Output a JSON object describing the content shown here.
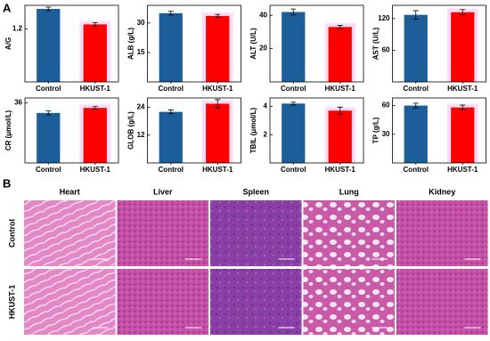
{
  "panel_labels": [
    "A",
    "B"
  ],
  "chart_data": [
    {
      "type": "bar",
      "ylabel": "A/G",
      "categories": [
        "Control",
        "HKUST-1"
      ],
      "values": [
        1.65,
        1.3
      ],
      "errors": [
        0.04,
        0.04
      ],
      "colors": [
        "#1b5e9a",
        "#ff0000"
      ],
      "ylim": [
        0,
        1.73
      ],
      "yticks": [
        1.2
      ]
    },
    {
      "type": "bar",
      "ylabel": "ALB (g/L)",
      "categories": [
        "Control",
        "HKUST-1"
      ],
      "values": [
        35,
        33.6
      ],
      "errors": [
        1,
        0.8
      ],
      "colors": [
        "#1b5e9a",
        "#ff0000"
      ],
      "ylim": [
        0,
        39
      ],
      "yticks": [
        15,
        30
      ]
    },
    {
      "type": "bar",
      "ylabel": "ALT (U/L)",
      "categories": [
        "Control",
        "HKUST-1"
      ],
      "values": [
        42,
        33
      ],
      "errors": [
        1.8,
        1
      ],
      "colors": [
        "#1b5e9a",
        "#ff0000"
      ],
      "ylim": [
        0,
        46
      ],
      "yticks": [
        20,
        40
      ]
    },
    {
      "type": "bar",
      "ylabel": "AST (U/L)",
      "categories": [
        "Control",
        "HKUST-1"
      ],
      "values": [
        127,
        132
      ],
      "errors": [
        8,
        5
      ],
      "colors": [
        "#1b5e9a",
        "#ff0000"
      ],
      "ylim": [
        0,
        145
      ],
      "yticks": [
        60,
        120
      ]
    },
    {
      "type": "bar",
      "ylabel": "CR (μmol/L)",
      "categories": [
        "Control",
        "HKUST-1"
      ],
      "values": [
        30,
        33
      ],
      "errors": [
        1.2,
        0.8
      ],
      "colors": [
        "#1b5e9a",
        "#ff0000"
      ],
      "ylim": [
        0,
        39
      ],
      "yticks": [
        36
      ]
    },
    {
      "type": "bar",
      "ylabel": "GLOB (g/L)",
      "categories": [
        "Control",
        "HKUST-1"
      ],
      "values": [
        22,
        25.5
      ],
      "errors": [
        0.8,
        1.8
      ],
      "colors": [
        "#1b5e9a",
        "#ff0000"
      ],
      "ylim": [
        0,
        28
      ],
      "yticks": [
        12,
        24
      ]
    },
    {
      "type": "bar",
      "ylabel": "TBIL (μmol/L)",
      "categories": [
        "Control",
        "HKUST-1"
      ],
      "values": [
        4.2,
        3.7
      ],
      "errors": [
        0.1,
        0.25
      ],
      "colors": [
        "#1b5e9a",
        "#ff0000"
      ],
      "ylim": [
        0,
        4.6
      ],
      "yticks": [
        2,
        4
      ]
    },
    {
      "type": "bar",
      "ylabel": "TP (g/L)",
      "categories": [
        "Control",
        "HKUST-1"
      ],
      "values": [
        60,
        58
      ],
      "errors": [
        2.5,
        2.5
      ],
      "colors": [
        "#1b5e9a",
        "#ff0000"
      ],
      "ylim": [
        0,
        68
      ],
      "yticks": [
        30,
        60
      ]
    }
  ],
  "histology": {
    "columns": [
      "Heart",
      "Liver",
      "Spleen",
      "Lung",
      "Kidney"
    ],
    "rows": [
      "Control",
      "HKUST-1"
    ]
  }
}
